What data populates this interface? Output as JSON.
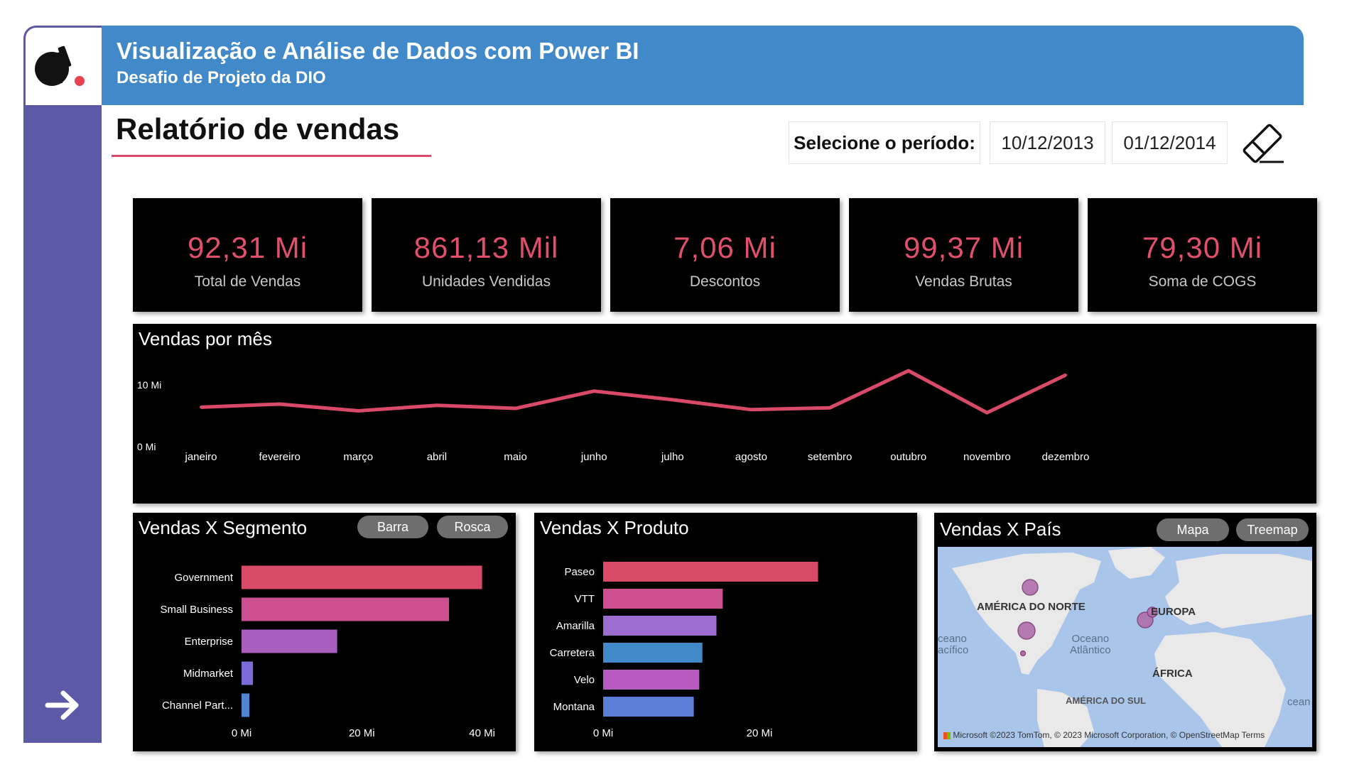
{
  "header": {
    "title": "Visualização e Análise de Dados com Power BI",
    "subtitle": "Desafio de Projeto da DIO"
  },
  "report": {
    "title": "Relatório de vendas",
    "period_label": "Selecione o período:",
    "date_start": "10/12/2013",
    "date_end": "01/12/2014"
  },
  "kpis": [
    {
      "value": "92,31 Mi",
      "label": "Total de Vendas"
    },
    {
      "value": "861,13 Mil",
      "label": "Unidades Vendidas"
    },
    {
      "value": "7,06 Mi",
      "label": "Descontos"
    },
    {
      "value": "99,37 Mi",
      "label": "Vendas Brutas"
    },
    {
      "value": "79,30 Mi",
      "label": "Soma de COGS"
    }
  ],
  "panels": {
    "line_title": "Vendas por mês",
    "segment_title": "Vendas X Segmento",
    "product_title": "Vendas X Produto",
    "country_title": "Vendas X País"
  },
  "buttons": {
    "barra": "Barra",
    "rosca": "Rosca",
    "mapa": "Mapa",
    "treemap": "Treemap"
  },
  "map": {
    "labels": {
      "north_america": "AMÉRICA DO NORTE",
      "europe": "EUROPA",
      "africa": "ÁFRICA",
      "south_america": "AMÉRICA DO SUL",
      "atlantic": "Oceano\nAtlântico",
      "pacific": "ceano\nacífico",
      "edge_ocean": "cean"
    },
    "attribution": "©2023 TomTom, © 2023 Microsoft Corporation, © OpenStreetMap  Terms",
    "brand": "Microsoft"
  },
  "colors": {
    "header_bg": "#4189c8",
    "sidebar_bg": "#5c5aa6",
    "accent": "#e0506b",
    "line": "#d94a68"
  },
  "chart_data": [
    {
      "type": "line",
      "title": "Vendas por mês",
      "categories": [
        "janeiro",
        "fevereiro",
        "março",
        "abril",
        "maio",
        "junho",
        "julho",
        "agosto",
        "setembro",
        "outubro",
        "novembro",
        "dezembro"
      ],
      "values": [
        6.4,
        6.9,
        5.8,
        6.7,
        6.2,
        9.0,
        7.6,
        6.0,
        6.3,
        12.3,
        5.5,
        11.6
      ],
      "ylabel_ticks": [
        "0 Mi",
        "10 Mi"
      ],
      "ylim": [
        0,
        15
      ],
      "grid": false
    },
    {
      "type": "bar",
      "title": "Vendas X Segmento",
      "orientation": "horizontal",
      "categories": [
        "Government",
        "Small Business",
        "Enterprise",
        "Midmarket",
        "Channel Part..."
      ],
      "values": [
        40.0,
        34.5,
        15.9,
        1.9,
        1.3
      ],
      "bar_colors": [
        "#d94a68",
        "#cc4f90",
        "#a75ebf",
        "#7a6bd6",
        "#4f86cf"
      ],
      "x_ticks": [
        "0 Mi",
        "20 Mi",
        "40 Mi"
      ],
      "xlim": [
        0,
        43
      ]
    },
    {
      "type": "bar",
      "title": "Vendas X Produto",
      "orientation": "horizontal",
      "categories": [
        "Paseo",
        "VTT",
        "Amarilla",
        "Carretera",
        "Velo",
        "Montana"
      ],
      "values": [
        27.5,
        15.3,
        14.5,
        12.7,
        12.3,
        11.6
      ],
      "bar_colors": [
        "#d94a68",
        "#cc4f90",
        "#9c6cd0",
        "#4189c8",
        "#b75bc0",
        "#5b7fd6"
      ],
      "x_ticks": [
        "0 Mi",
        "20 Mi"
      ],
      "xlim": [
        0,
        32
      ]
    }
  ]
}
